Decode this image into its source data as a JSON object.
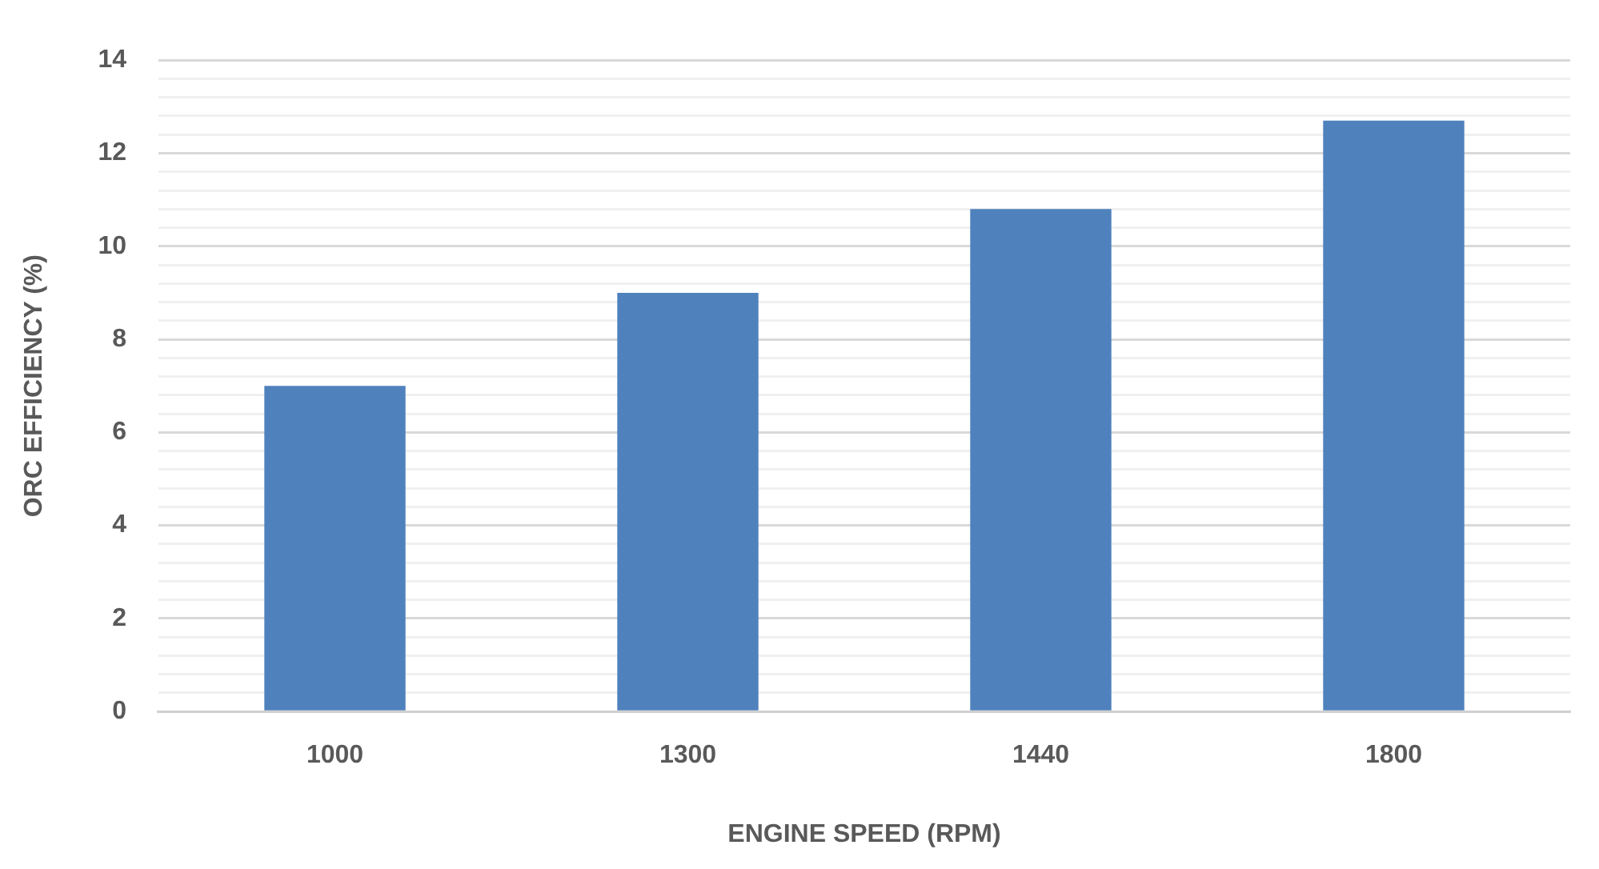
{
  "chart_data": {
    "type": "bar",
    "xlabel": "ENGINE SPEED (RPM)",
    "ylabel": "ORC EFFICIENCY (%)",
    "categories": [
      "1000",
      "1300",
      "1440",
      "1800"
    ],
    "values": [
      7.0,
      9.0,
      10.8,
      12.7
    ],
    "color": "#4f81bd",
    "ylim": [
      0,
      14
    ],
    "yticks": [
      0,
      {
        "value": 0.4,
        "label": null
      },
      {
        "value": 0.8,
        "label": null
      },
      {
        "value": 1.2,
        "label": null
      },
      {
        "value": 1.6,
        "label": null
      },
      2,
      {
        "value": 2.4,
        "label": null
      },
      {
        "value": 2.8,
        "label": null
      },
      {
        "value": 3.2,
        "label": null
      },
      {
        "value": 3.6,
        "label": null
      },
      4,
      {
        "value": 4.4,
        "label": null
      },
      {
        "value": 4.8,
        "label": null
      },
      {
        "value": 5.2,
        "label": null
      },
      {
        "value": 5.6,
        "label": null
      },
      6,
      {
        "value": 6.4,
        "label": null
      },
      {
        "value": 6.8,
        "label": null
      },
      {
        "value": 7.2,
        "label": null
      },
      {
        "value": 7.6,
        "label": null
      },
      8,
      {
        "value": 8.4,
        "label": null
      },
      {
        "value": 8.8,
        "label": null
      },
      {
        "value": 9.2,
        "label": null
      },
      {
        "value": 9.6,
        "label": null
      },
      10,
      {
        "value": 10.4,
        "label": null
      },
      {
        "value": 10.8,
        "label": null
      },
      {
        "value": 11.2,
        "label": null
      },
      {
        "value": 11.6,
        "label": null
      },
      12,
      {
        "value": 12.4,
        "label": null
      },
      {
        "value": 12.8,
        "label": null
      },
      {
        "value": 13.2,
        "label": null
      },
      {
        "value": 13.6,
        "label": null
      },
      14
    ],
    "grid": "y"
  }
}
